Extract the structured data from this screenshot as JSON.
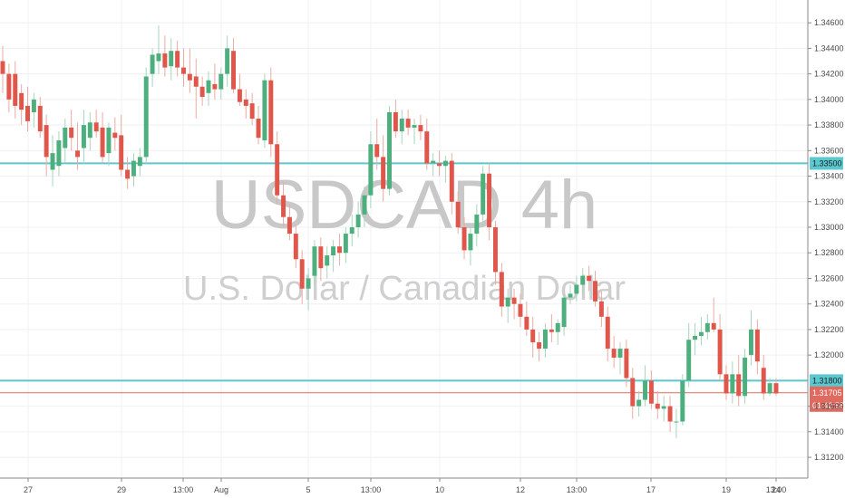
{
  "chart_data": {
    "type": "candlestick",
    "symbol_watermark": "USDCAD, 4h",
    "description_watermark": "U.S. Dollar / Canadian Dollar",
    "ylim": [
      1.3108,
      1.3475
    ],
    "y_ticks": [
      "1.34600",
      "1.34400",
      "1.34200",
      "1.34000",
      "1.33800",
      "1.33600",
      "1.33400",
      "1.33200",
      "1.33000",
      "1.32800",
      "1.32600",
      "1.32400",
      "1.32200",
      "1.32000",
      "1.31600",
      "1.31400",
      "1.31200"
    ],
    "x_ticks": [
      "27",
      "29",
      "13:00",
      "Aug",
      "5",
      "13:00",
      "10",
      "12",
      "13:00",
      "17",
      "19",
      "13:00",
      "24"
    ],
    "horizontal_lines": [
      {
        "value": 1.335,
        "label": "1.33500",
        "color": "#5bc8d0"
      },
      {
        "value": 1.318,
        "label": "1.31800",
        "color": "#5bc8d0"
      }
    ],
    "last_price": {
      "value": 1.31705,
      "label": "1.31705",
      "countdown": "01:42:58",
      "color": "#e06a5f"
    },
    "colors": {
      "up": "#4caf7d",
      "down": "#e0564a",
      "up_wick": "#a8d5bc",
      "down_wick": "#ecaaa4"
    },
    "candles": [
      [
        1.343,
        1.3442,
        1.3405,
        1.342
      ],
      [
        1.342,
        1.3428,
        1.339,
        1.34
      ],
      [
        1.342,
        1.343,
        1.3385,
        1.3395
      ],
      [
        1.3405,
        1.3412,
        1.338,
        1.3392
      ],
      [
        1.3395,
        1.341,
        1.3375,
        1.3383
      ],
      [
        1.339,
        1.3405,
        1.3378,
        1.34
      ],
      [
        1.3395,
        1.3402,
        1.337,
        1.3375
      ],
      [
        1.338,
        1.3388,
        1.334,
        1.3355
      ],
      [
        1.3345,
        1.3372,
        1.3332,
        1.3358
      ],
      [
        1.3348,
        1.3375,
        1.334,
        1.3368
      ],
      [
        1.3362,
        1.3385,
        1.335,
        1.3378
      ],
      [
        1.3378,
        1.3392,
        1.336,
        1.337
      ],
      [
        1.336,
        1.3382,
        1.3345,
        1.3355
      ],
      [
        1.3362,
        1.3392,
        1.335,
        1.338
      ],
      [
        1.337,
        1.339,
        1.336,
        1.3382
      ],
      [
        1.3382,
        1.3392,
        1.337,
        1.3375
      ],
      [
        1.3378,
        1.339,
        1.335,
        1.3355
      ],
      [
        1.3358,
        1.3382,
        1.3348,
        1.3378
      ],
      [
        1.3374,
        1.3386,
        1.336,
        1.337
      ],
      [
        1.3372,
        1.3388,
        1.334,
        1.3345
      ],
      [
        1.3345,
        1.3355,
        1.333,
        1.3338
      ],
      [
        1.334,
        1.3358,
        1.3332,
        1.3352
      ],
      [
        1.3348,
        1.3362,
        1.334,
        1.3355
      ],
      [
        1.3355,
        1.3425,
        1.335,
        1.3418
      ],
      [
        1.342,
        1.344,
        1.341,
        1.3435
      ],
      [
        1.343,
        1.3458,
        1.342,
        1.3436
      ],
      [
        1.3436,
        1.345,
        1.3418,
        1.3425
      ],
      [
        1.3426,
        1.3448,
        1.3415,
        1.3438
      ],
      [
        1.3438,
        1.3446,
        1.3418,
        1.3425
      ],
      [
        1.3425,
        1.344,
        1.341,
        1.342
      ],
      [
        1.342,
        1.344,
        1.3405,
        1.3415
      ],
      [
        1.3418,
        1.3432,
        1.3385,
        1.341
      ],
      [
        1.341,
        1.3418,
        1.3395,
        1.3402
      ],
      [
        1.3405,
        1.3422,
        1.3395,
        1.3415
      ],
      [
        1.3412,
        1.3428,
        1.34,
        1.3408
      ],
      [
        1.3408,
        1.3425,
        1.34,
        1.342
      ],
      [
        1.342,
        1.345,
        1.341,
        1.344
      ],
      [
        1.3438,
        1.3448,
        1.3405,
        1.3408
      ],
      [
        1.3408,
        1.342,
        1.3395,
        1.3398
      ],
      [
        1.34,
        1.3408,
        1.3385,
        1.3395
      ],
      [
        1.3397,
        1.3405,
        1.338,
        1.3385
      ],
      [
        1.3385,
        1.3395,
        1.3365,
        1.337
      ],
      [
        1.3368,
        1.342,
        1.3362,
        1.3415
      ],
      [
        1.3415,
        1.3425,
        1.3355,
        1.3365
      ],
      [
        1.3365,
        1.3375,
        1.3318,
        1.3325
      ],
      [
        1.3325,
        1.3335,
        1.33,
        1.3308
      ],
      [
        1.3308,
        1.3318,
        1.329,
        1.3295
      ],
      [
        1.3295,
        1.3302,
        1.3268,
        1.3275
      ],
      [
        1.3275,
        1.3282,
        1.324,
        1.3252
      ],
      [
        1.3252,
        1.3268,
        1.3235,
        1.326
      ],
      [
        1.3262,
        1.329,
        1.3255,
        1.3285
      ],
      [
        1.3285,
        1.3292,
        1.3258,
        1.3268
      ],
      [
        1.327,
        1.3285,
        1.326,
        1.3278
      ],
      [
        1.3278,
        1.329,
        1.3265,
        1.3285
      ],
      [
        1.3285,
        1.3295,
        1.327,
        1.328
      ],
      [
        1.328,
        1.33,
        1.3272,
        1.3295
      ],
      [
        1.3295,
        1.331,
        1.3285,
        1.33
      ],
      [
        1.33,
        1.332,
        1.3292,
        1.331
      ],
      [
        1.331,
        1.3332,
        1.33,
        1.3325
      ],
      [
        1.3325,
        1.3375,
        1.3315,
        1.3365
      ],
      [
        1.3365,
        1.3385,
        1.3345,
        1.3355
      ],
      [
        1.3355,
        1.3372,
        1.332,
        1.333
      ],
      [
        1.333,
        1.3395,
        1.3325,
        1.339
      ],
      [
        1.339,
        1.34,
        1.337,
        1.3375
      ],
      [
        1.3375,
        1.3392,
        1.3365,
        1.3385
      ],
      [
        1.3385,
        1.3392,
        1.3372,
        1.3378
      ],
      [
        1.3378,
        1.3385,
        1.3365,
        1.338
      ],
      [
        1.338,
        1.3388,
        1.3368,
        1.3375
      ],
      [
        1.3375,
        1.3385,
        1.3345,
        1.335
      ],
      [
        1.335,
        1.3358,
        1.334,
        1.3352
      ],
      [
        1.335,
        1.336,
        1.334,
        1.3348
      ],
      [
        1.3348,
        1.3356,
        1.3335,
        1.3352
      ],
      [
        1.3352,
        1.3358,
        1.331,
        1.332
      ],
      [
        1.332,
        1.3328,
        1.3295,
        1.33
      ],
      [
        1.33,
        1.3308,
        1.3275,
        1.3282
      ],
      [
        1.3282,
        1.33,
        1.327,
        1.3295
      ],
      [
        1.3295,
        1.3318,
        1.3285,
        1.331
      ],
      [
        1.331,
        1.3348,
        1.33,
        1.3342
      ],
      [
        1.3342,
        1.335,
        1.329,
        1.33
      ],
      [
        1.33,
        1.3305,
        1.3255,
        1.3265
      ],
      [
        1.3265,
        1.3272,
        1.323,
        1.3238
      ],
      [
        1.3238,
        1.3252,
        1.3225,
        1.3245
      ],
      [
        1.3245,
        1.3252,
        1.3228,
        1.324
      ],
      [
        1.324,
        1.3248,
        1.3222,
        1.323
      ],
      [
        1.323,
        1.3242,
        1.3215,
        1.322
      ],
      [
        1.322,
        1.323,
        1.3198,
        1.321
      ],
      [
        1.321,
        1.3218,
        1.3195,
        1.3205
      ],
      [
        1.3205,
        1.3225,
        1.3198,
        1.322
      ],
      [
        1.322,
        1.3232,
        1.321,
        1.3218
      ],
      [
        1.3218,
        1.3228,
        1.3208,
        1.3225
      ],
      [
        1.3222,
        1.3248,
        1.3215,
        1.3245
      ],
      [
        1.3245,
        1.3255,
        1.324,
        1.3248
      ],
      [
        1.3248,
        1.3262,
        1.3242,
        1.3255
      ],
      [
        1.3255,
        1.3268,
        1.3248,
        1.3262
      ],
      [
        1.3262,
        1.327,
        1.325,
        1.3258
      ],
      [
        1.3258,
        1.3266,
        1.3238,
        1.3242
      ],
      [
        1.3242,
        1.325,
        1.3222,
        1.323
      ],
      [
        1.323,
        1.3238,
        1.3195,
        1.3205
      ],
      [
        1.3205,
        1.3215,
        1.319,
        1.3198
      ],
      [
        1.3198,
        1.321,
        1.3185,
        1.3205
      ],
      [
        1.3205,
        1.3212,
        1.3175,
        1.3182
      ],
      [
        1.3182,
        1.319,
        1.315,
        1.316
      ],
      [
        1.316,
        1.3172,
        1.3152,
        1.3165
      ],
      [
        1.3165,
        1.3192,
        1.316,
        1.318
      ],
      [
        1.318,
        1.3188,
        1.3158,
        1.3162
      ],
      [
        1.3162,
        1.3172,
        1.315,
        1.3158
      ],
      [
        1.3158,
        1.3168,
        1.3148,
        1.316
      ],
      [
        1.316,
        1.3168,
        1.314,
        1.3148
      ],
      [
        1.3148,
        1.3158,
        1.3135,
        1.3148
      ],
      [
        1.3148,
        1.3185,
        1.3145,
        1.318
      ],
      [
        1.318,
        1.3225,
        1.3175,
        1.3212
      ],
      [
        1.3212,
        1.3225,
        1.32,
        1.3215
      ],
      [
        1.3215,
        1.323,
        1.3208,
        1.3218
      ],
      [
        1.3218,
        1.3232,
        1.3212,
        1.3225
      ],
      [
        1.3225,
        1.3245,
        1.3218,
        1.322
      ],
      [
        1.322,
        1.3232,
        1.318,
        1.3185
      ],
      [
        1.3185,
        1.3192,
        1.3165,
        1.317
      ],
      [
        1.317,
        1.3195,
        1.3162,
        1.3185
      ],
      [
        1.3185,
        1.32,
        1.316,
        1.3168
      ],
      [
        1.3168,
        1.3205,
        1.3162,
        1.3198
      ],
      [
        1.32,
        1.3235,
        1.3192,
        1.322
      ],
      [
        1.322,
        1.3228,
        1.3185,
        1.3195
      ],
      [
        1.319,
        1.32,
        1.3165,
        1.317
      ],
      [
        1.317,
        1.3182,
        1.3168,
        1.3178
      ],
      [
        1.3178,
        1.3182,
        1.3168,
        1.317
      ]
    ]
  }
}
